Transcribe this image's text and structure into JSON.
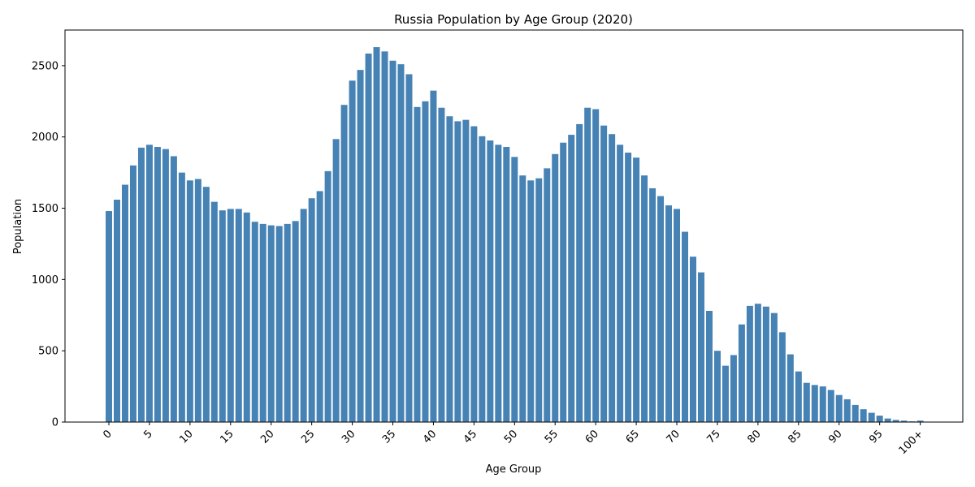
{
  "chart_data": {
    "type": "bar",
    "title": "Russia Population by Age Group (2020)",
    "xlabel": "Age Group",
    "ylabel": "Population",
    "ylim": [
      0,
      2750
    ],
    "yticks": [
      0,
      500,
      1000,
      1500,
      2000,
      2500
    ],
    "bar_color": "#4682b4",
    "grid": false,
    "legend": "none",
    "categories": [
      "0",
      "1",
      "2",
      "3",
      "4",
      "5",
      "6",
      "7",
      "8",
      "9",
      "10",
      "11",
      "12",
      "13",
      "14",
      "15",
      "16",
      "17",
      "18",
      "19",
      "20",
      "21",
      "22",
      "23",
      "24",
      "25",
      "26",
      "27",
      "28",
      "29",
      "30",
      "31",
      "32",
      "33",
      "34",
      "35",
      "36",
      "37",
      "38",
      "39",
      "40",
      "41",
      "42",
      "43",
      "44",
      "45",
      "46",
      "47",
      "48",
      "49",
      "50",
      "51",
      "52",
      "53",
      "54",
      "55",
      "56",
      "57",
      "58",
      "59",
      "60",
      "61",
      "62",
      "63",
      "64",
      "65",
      "66",
      "67",
      "68",
      "69",
      "70",
      "71",
      "72",
      "73",
      "74",
      "75",
      "76",
      "77",
      "78",
      "79",
      "80",
      "81",
      "82",
      "83",
      "84",
      "85",
      "86",
      "87",
      "88",
      "89",
      "90",
      "91",
      "92",
      "93",
      "94",
      "95",
      "96",
      "97",
      "98",
      "99",
      "100+"
    ],
    "tick_labels": [
      "0",
      "5",
      "10",
      "15",
      "20",
      "25",
      "30",
      "35",
      "40",
      "45",
      "50",
      "55",
      "60",
      "65",
      "70",
      "75",
      "80",
      "85",
      "90",
      "95",
      "100+"
    ],
    "values": [
      1480,
      1560,
      1665,
      1800,
      1925,
      1945,
      1930,
      1915,
      1865,
      1750,
      1695,
      1705,
      1650,
      1545,
      1485,
      1495,
      1495,
      1470,
      1405,
      1390,
      1380,
      1375,
      1390,
      1410,
      1495,
      1570,
      1620,
      1760,
      1985,
      2225,
      2395,
      2470,
      2585,
      2630,
      2600,
      2535,
      2510,
      2440,
      2210,
      2250,
      2325,
      2205,
      2145,
      2110,
      2120,
      2075,
      2005,
      1975,
      1945,
      1930,
      1860,
      1730,
      1695,
      1710,
      1780,
      1880,
      1960,
      2015,
      2090,
      2205,
      2195,
      2080,
      2020,
      1945,
      1890,
      1855,
      1730,
      1640,
      1585,
      1520,
      1495,
      1335,
      1160,
      1050,
      780,
      500,
      395,
      470,
      685,
      815,
      830,
      810,
      765,
      630,
      475,
      355,
      275,
      260,
      250,
      225,
      190,
      160,
      120,
      90,
      65,
      45,
      25,
      15,
      10,
      5,
      10
    ]
  }
}
